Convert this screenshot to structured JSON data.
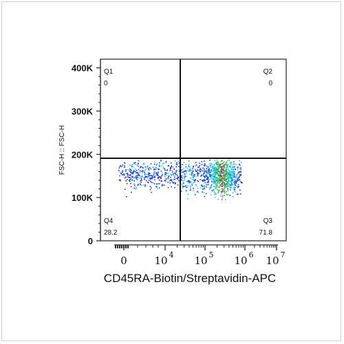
{
  "chart_data": {
    "type": "scatter",
    "xlabel": "CD45RA-Biotin/Streptavidin-APC",
    "ylabel": "FSC-H :: FSC-H",
    "x_scale": "biexponential",
    "x_ticks": [
      {
        "base": "0",
        "exp": ""
      },
      {
        "base": "10",
        "exp": "4"
      },
      {
        "base": "10",
        "exp": "5"
      },
      {
        "base": "10",
        "exp": "6"
      },
      {
        "base": "10",
        "exp": "7"
      }
    ],
    "y_ticks": [
      "0",
      "100K",
      "200K",
      "300K",
      "400K"
    ],
    "y_tick_values": [
      0,
      100000,
      200000,
      300000,
      400000
    ],
    "ylim": [
      0,
      420000
    ],
    "quadrants": [
      {
        "name": "Q1",
        "value": "0"
      },
      {
        "name": "Q2",
        "value": "0"
      },
      {
        "name": "Q3",
        "value": "71.8"
      },
      {
        "name": "Q4",
        "value": "28.2"
      }
    ],
    "gate_y": 200000,
    "populations": [
      {
        "region": "low",
        "y_center": 155000,
        "y_spread": 18000,
        "share": 28.2
      },
      {
        "region": "high",
        "y_center": 150000,
        "y_spread": 20000,
        "share": 71.8
      }
    ],
    "colors": {
      "low_density": "#1f2bd6",
      "mid_density": "#22c6e8",
      "high_density": "#2ecc40",
      "peak_density": "#ff2a1a"
    }
  }
}
